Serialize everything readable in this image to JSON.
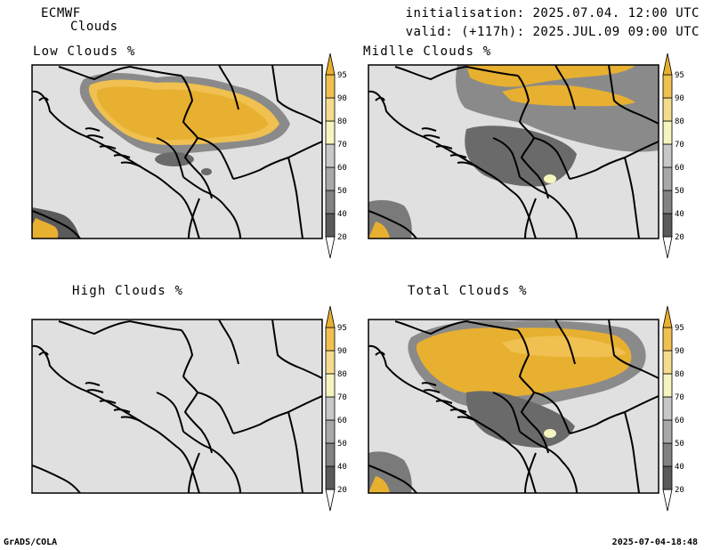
{
  "header": {
    "model": "ECMWF",
    "product": "Clouds",
    "init": "initialisation: 2025.07.04. 12:00 UTC",
    "valid": "valid: (+117h): 2025.JUL.09 09:00 UTC"
  },
  "panels": [
    {
      "title": "Low Clouds %"
    },
    {
      "title": "Midlle Clouds %"
    },
    {
      "title": "High Clouds %"
    },
    {
      "title": "Total Clouds %"
    }
  ],
  "colorbar": {
    "levels": [
      "20",
      "40",
      "50",
      "60",
      "70",
      "80",
      "90",
      "95"
    ],
    "colors": [
      "#ffffff",
      "#5a5a5a",
      "#828282",
      "#a8a8a8",
      "#c8c8c8",
      "#f5f5c0",
      "#f5dc8c",
      "#f0c050",
      "#e8b030"
    ]
  },
  "colors": {
    "background_fill": "#e0e0e0",
    "cloud_high": "#e8b030"
  },
  "footer": {
    "left": "GrADS/COLA",
    "right": "2025-07-04-18:48"
  }
}
